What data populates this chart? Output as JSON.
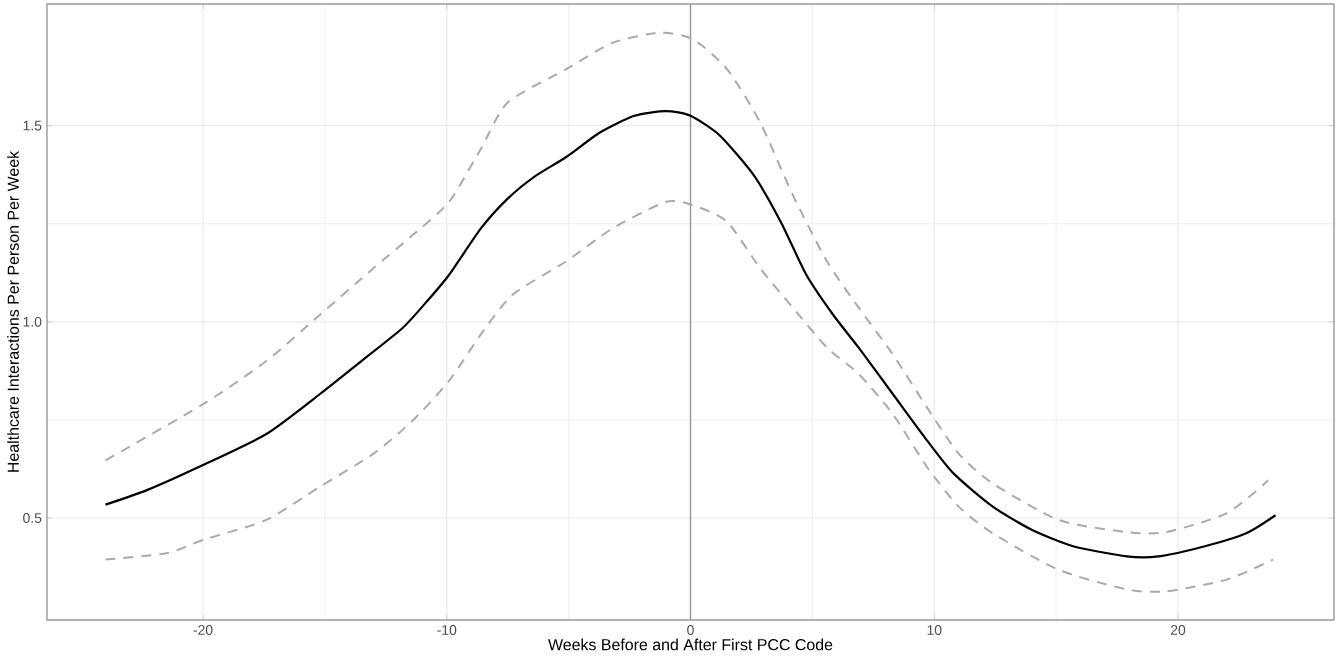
{
  "chart_data": {
    "type": "line",
    "xlabel": "Weeks Before and After First PCC Code",
    "ylabel": "Healthcare Interactions Per Person Per Week",
    "xlim": [
      -26.4,
      26.4
    ],
    "ylim": [
      0.24,
      1.81
    ],
    "xticks": [
      -20,
      -10,
      0,
      10,
      20
    ],
    "yticks": [
      0.5,
      {
        "value": 1,
        "label": "1.0"
      },
      1.5
    ],
    "grid": true,
    "marker": "none",
    "ref_lines": [
      {
        "axis": "x",
        "value": 0,
        "color": "#999999",
        "line_style": "solid"
      }
    ],
    "series": [
      {
        "color": "#000000",
        "line_style": "solid",
        "x": [
          -24,
          -22.3,
          -20,
          -17.4,
          -15.2,
          -13.5,
          -11.8,
          -10.8,
          -9.9,
          -8.6,
          -7.5,
          -6.4,
          -5.1,
          -3.7,
          -2.3,
          -1.0,
          0,
          1.2,
          2.6,
          3.7,
          4.75,
          5.85,
          6.9,
          8.3,
          9.7,
          10.8,
          12.4,
          14.0,
          15.7,
          17.9,
          19.2,
          21.1,
          22.8,
          24
        ],
        "values": [
          0.534,
          0.571,
          0.635,
          0.714,
          0.816,
          0.9,
          0.985,
          1.053,
          1.12,
          1.238,
          1.314,
          1.37,
          1.42,
          1.483,
          1.525,
          1.537,
          1.525,
          1.475,
          1.373,
          1.255,
          1.12,
          1.018,
          0.934,
          0.816,
          0.698,
          0.613,
          0.529,
          0.47,
          0.428,
          0.402,
          0.402,
          0.428,
          0.461,
          0.507
        ]
      },
      {
        "color": "#aaaaaa",
        "line_style": "dashed",
        "x": [
          -24,
          -20,
          -17.4,
          -15.2,
          -13.0,
          -11.4,
          -9.9,
          -8.6,
          -7.5,
          -5.1,
          -3.2,
          -1.25,
          0.1,
          1.5,
          2.85,
          4.2,
          5.6,
          6.9,
          8.3,
          9.7,
          11.0,
          12.4,
          15.1,
          17.9,
          19.5,
          22.0,
          23.7
        ],
        "values": [
          0.647,
          0.79,
          0.9,
          1.018,
          1.137,
          1.221,
          1.306,
          1.441,
          1.559,
          1.644,
          1.711,
          1.737,
          1.72,
          1.644,
          1.509,
          1.323,
          1.154,
          1.036,
          0.917,
          0.782,
          0.664,
          0.588,
          0.495,
          0.464,
          0.464,
          0.512,
          0.596
        ]
      },
      {
        "color": "#aaaaaa",
        "line_style": "dashed",
        "x": [
          -24,
          -21.5,
          -20,
          -17.4,
          -15.2,
          -13,
          -11.4,
          -9.9,
          -8.6,
          -7.3,
          -5.1,
          -3.2,
          -1.0,
          0.1,
          1.5,
          2.85,
          4.2,
          5.6,
          6.9,
          8.3,
          9.7,
          11.0,
          12.4,
          15.1,
          17.9,
          19.5,
          22,
          23.9
        ],
        "values": [
          0.394,
          0.41,
          0.444,
          0.495,
          0.58,
          0.664,
          0.748,
          0.85,
          0.968,
          1.069,
          1.154,
          1.238,
          1.306,
          1.297,
          1.255,
          1.137,
          1.036,
          0.934,
          0.867,
          0.765,
          0.63,
          0.529,
          0.461,
          0.368,
          0.318,
          0.313,
          0.343,
          0.394
        ]
      }
    ]
  }
}
